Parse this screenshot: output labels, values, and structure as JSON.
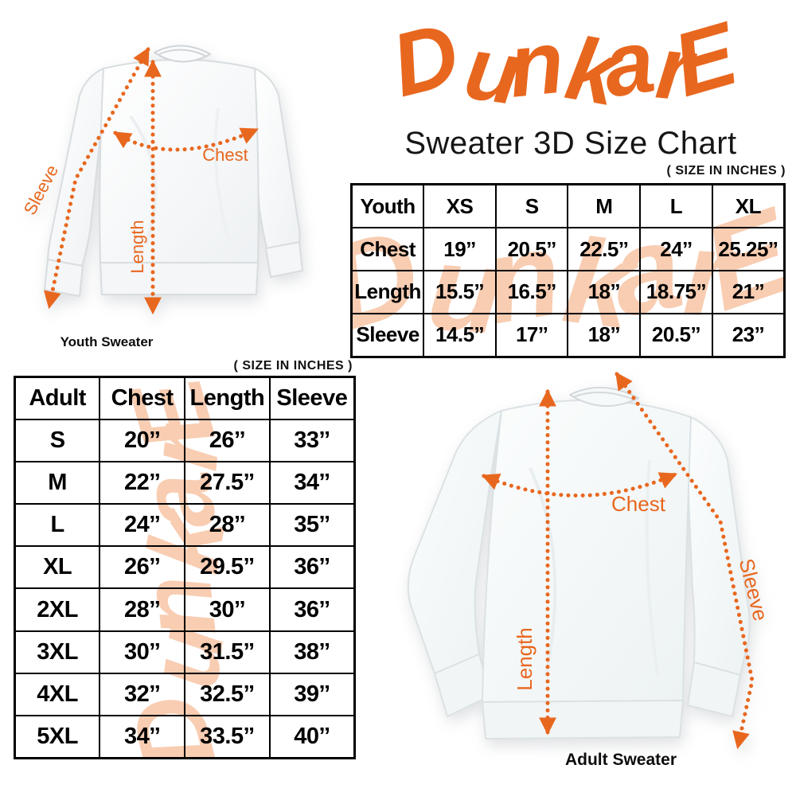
{
  "brand": {
    "logo_text": "DunkarE",
    "subtitle": "Sweater 3D Size Chart",
    "accent_color": "#E8671E",
    "watermark_color": "#F8CDB2"
  },
  "youth_section": {
    "size_note": "( SIZE IN INCHES )",
    "caption": "Youth Sweater",
    "labels": {
      "chest": "Chest",
      "length": "Length",
      "sleeve": "Sleeve"
    },
    "table": {
      "header": [
        "Youth",
        "XS",
        "S",
        "M",
        "L",
        "XL"
      ],
      "rows": [
        {
          "label": "Chest",
          "values": [
            "19’’",
            "20.5’’",
            "22.5’’",
            "24’’",
            "25.25’’"
          ]
        },
        {
          "label": "Length",
          "values": [
            "15.5’’",
            "16.5’’",
            "18’’",
            "18.75’’",
            "21’’"
          ]
        },
        {
          "label": "Sleeve",
          "values": [
            "14.5’’",
            "17’’",
            "18’’",
            "20.5’’",
            "23’’"
          ]
        }
      ]
    }
  },
  "adult_section": {
    "size_note": "( SIZE IN INCHES )",
    "caption": "Adult Sweater",
    "labels": {
      "chest": "Chest",
      "length": "Length",
      "sleeve": "Sleeve"
    },
    "table": {
      "header": [
        "Adult",
        "Chest",
        "Length",
        "Sleeve"
      ],
      "rows": [
        {
          "label": "S",
          "values": [
            "20’’",
            "26’’",
            "33’’"
          ]
        },
        {
          "label": "M",
          "values": [
            "22’’",
            "27.5’’",
            "34’’"
          ]
        },
        {
          "label": "L",
          "values": [
            "24’’",
            "28’’",
            "35’’"
          ]
        },
        {
          "label": "XL",
          "values": [
            "26’’",
            "29.5’’",
            "36’’"
          ]
        },
        {
          "label": "2XL",
          "values": [
            "28’’",
            "30’’",
            "36’’"
          ]
        },
        {
          "label": "3XL",
          "values": [
            "30’’",
            "31.5’’",
            "38’’"
          ]
        },
        {
          "label": "4XL",
          "values": [
            "32’’",
            "32.5’’",
            "39’’"
          ]
        },
        {
          "label": "5XL",
          "values": [
            "34’’",
            "33.5’’",
            "40’’"
          ]
        }
      ]
    }
  }
}
